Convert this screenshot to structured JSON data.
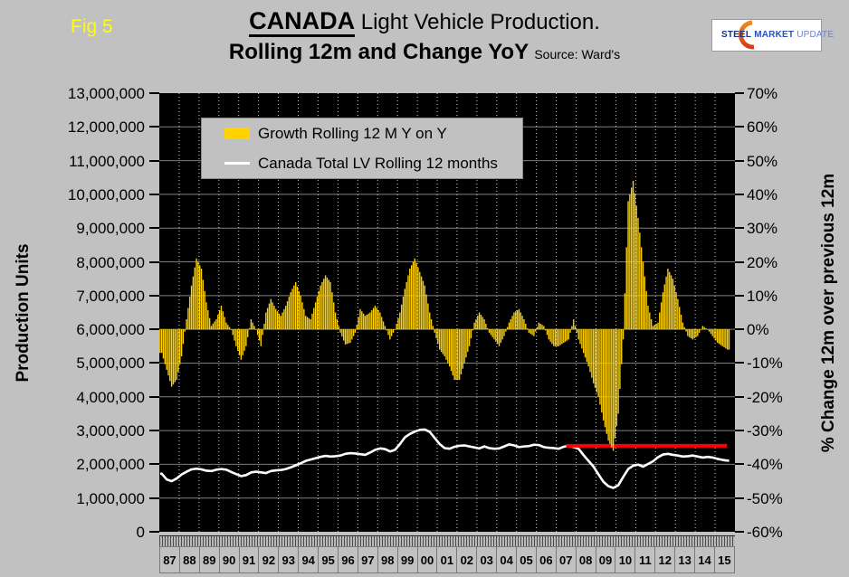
{
  "fig_label": "Fig 5",
  "title": {
    "emphasis": "CANADA",
    "rest": " Light Vehicle Production.",
    "line2": "Rolling 12m and Change YoY",
    "source": "Source: Ward's"
  },
  "logo": {
    "word1": "STEEL",
    "word2": "MARKET",
    "word3": "UPDATE"
  },
  "legend": {
    "items": [
      {
        "swatch": "bar",
        "color": "#ffd200",
        "label": "Growth Rolling 12 M Y on Y"
      },
      {
        "swatch": "line",
        "color": "#ffffff",
        "label": "Canada Total LV Rolling 12 months"
      }
    ]
  },
  "axes": {
    "left_title": "Production Units",
    "right_title": "% Change 12m over previous 12m",
    "left_tick_labels": [
      "13,000,000",
      "12,000,000",
      "11,000,000",
      "10,000,000",
      "9,000,000",
      "8,000,000",
      "7,000,000",
      "6,000,000",
      "5,000,000",
      "4,000,000",
      "3,000,000",
      "2,000,000",
      "1,000,000",
      "0"
    ],
    "right_tick_labels": [
      "70%",
      "60%",
      "50%",
      "40%",
      "30%",
      "20%",
      "10%",
      "0%",
      "-10%",
      "-20%",
      "-30%",
      "-40%",
      "-50%",
      "-60%"
    ]
  },
  "chart_data": {
    "type": "bar",
    "subtype": "bar+line combo, dual axis",
    "title": "CANADA Light Vehicle Production. Rolling 12m and Change YoY",
    "x_axis": {
      "labels": [
        "87",
        "88",
        "89",
        "90",
        "91",
        "92",
        "93",
        "94",
        "95",
        "96",
        "97",
        "98",
        "99",
        "00",
        "01",
        "02",
        "03",
        "04",
        "05",
        "06",
        "07",
        "08",
        "09",
        "10",
        "11",
        "12",
        "13",
        "14",
        "15"
      ],
      "start_year": 1987,
      "resolution": "quarterly (values estimated from monthly plot)"
    },
    "left_axis": {
      "label": "Production Units",
      "min": 0,
      "max": 13000000,
      "step": 1000000,
      "grid": true
    },
    "right_axis": {
      "label": "% Change 12m over previous 12m",
      "min": -60,
      "max": 70,
      "step": 10
    },
    "series": [
      {
        "name": "Growth Rolling 12 M Y on Y",
        "type": "bar",
        "axis": "right",
        "unit": "percent",
        "color": "#ffd200",
        "values": [
          -7,
          -12,
          -17,
          -15,
          -8,
          3,
          13,
          21,
          18,
          8,
          1,
          3,
          7,
          2,
          0,
          -5,
          -9,
          -5,
          3,
          0,
          -5,
          5,
          9,
          6,
          4,
          7,
          11,
          14,
          10,
          4,
          3,
          8,
          13,
          16,
          14,
          5,
          -1,
          -4.5,
          -4,
          -1,
          6,
          4,
          5,
          7,
          5,
          1,
          -3,
          0,
          5,
          12,
          18,
          21,
          17,
          13,
          5,
          -1,
          -6,
          -8,
          -11,
          -15,
          -15,
          -10,
          -5,
          2,
          5,
          3,
          -1,
          -3,
          -5,
          -2,
          2,
          5,
          6,
          3,
          -1,
          -2,
          2,
          1,
          -3,
          -5,
          -5,
          -4,
          -3,
          3,
          -3,
          -7,
          -11,
          -16,
          -20,
          -27,
          -33,
          -36,
          -25,
          -3,
          38,
          44,
          33,
          20,
          7,
          1,
          2,
          11,
          18,
          15,
          9,
          2,
          -2,
          -3,
          -2,
          1,
          0,
          -2,
          -4,
          -5,
          -6
        ]
      },
      {
        "name": "Canada Total LV Rolling 12 months",
        "type": "line",
        "axis": "left",
        "unit": "units",
        "color": "#ffffff",
        "values": [
          1720000,
          1550000,
          1500000,
          1580000,
          1700000,
          1780000,
          1850000,
          1870000,
          1850000,
          1810000,
          1800000,
          1840000,
          1860000,
          1840000,
          1770000,
          1710000,
          1650000,
          1680000,
          1760000,
          1780000,
          1760000,
          1740000,
          1800000,
          1820000,
          1830000,
          1860000,
          1910000,
          1970000,
          2030000,
          2100000,
          2140000,
          2180000,
          2220000,
          2250000,
          2230000,
          2240000,
          2260000,
          2310000,
          2330000,
          2320000,
          2300000,
          2280000,
          2350000,
          2430000,
          2470000,
          2450000,
          2380000,
          2430000,
          2600000,
          2800000,
          2900000,
          2970000,
          3020000,
          3030000,
          2960000,
          2780000,
          2600000,
          2480000,
          2460000,
          2520000,
          2550000,
          2560000,
          2530000,
          2500000,
          2470000,
          2530000,
          2480000,
          2460000,
          2470000,
          2530000,
          2590000,
          2560000,
          2510000,
          2530000,
          2540000,
          2580000,
          2570000,
          2510000,
          2490000,
          2480000,
          2460000,
          2520000,
          2550000,
          2510000,
          2460000,
          2270000,
          2100000,
          1930000,
          1700000,
          1480000,
          1350000,
          1300000,
          1380000,
          1630000,
          1860000,
          1960000,
          1990000,
          1930000,
          2010000,
          2090000,
          2210000,
          2290000,
          2310000,
          2280000,
          2260000,
          2230000,
          2240000,
          2260000,
          2230000,
          2200000,
          2220000,
          2200000,
          2160000,
          2130000,
          2110000
        ]
      }
    ],
    "reference_line": {
      "color": "#ff0000",
      "axis": "right",
      "value_pct": -34.5,
      "equivalent_units": 2550000,
      "x_start_year": 2007.5,
      "x_end_year": 2015.6
    },
    "colors": {
      "background": "#c1c1c1",
      "plot_background": "#000000",
      "bar": "#ffd200",
      "line": "#ffffff",
      "reference": "#ff0000",
      "grid_horizontal": "#7f7f7f",
      "grid_vertical": "#d0d0d0"
    },
    "legend_position": "top-left inside plot"
  }
}
